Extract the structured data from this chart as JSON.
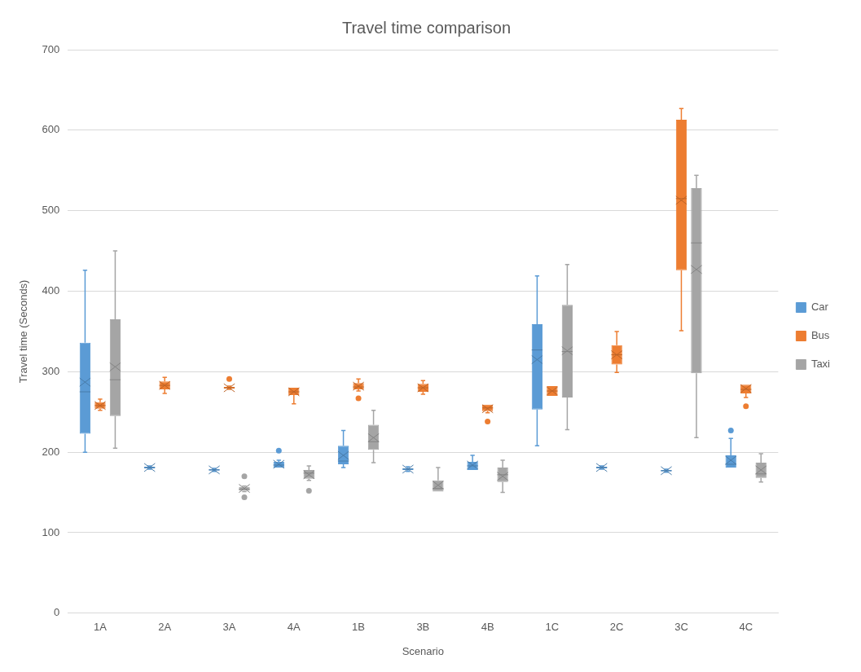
{
  "chart_data": {
    "type": "box",
    "title": "Travel time comparison",
    "xlabel": "Scenario",
    "ylabel": "Travel time (Seconds)",
    "categories": [
      "1A",
      "2A",
      "3A",
      "4A",
      "1B",
      "3B",
      "4B",
      "1C",
      "2C",
      "3C",
      "4C"
    ],
    "ylim": [
      0,
      700
    ],
    "yticks": [
      0,
      100,
      200,
      300,
      400,
      500,
      600,
      700
    ],
    "grid": "y",
    "legend": "right",
    "series": [
      {
        "name": "Car",
        "color": "#5b9bd5",
        "boxes": [
          {
            "low": 200,
            "q1": 223,
            "median": 275,
            "q3": 336,
            "high": 426,
            "mean": 287
          },
          {
            "low": 179,
            "q1": 180,
            "median": 181,
            "q3": 182,
            "high": 183,
            "mean": 181
          },
          {
            "low": 176,
            "q1": 177,
            "median": 178,
            "q3": 179,
            "high": 180,
            "mean": 178
          },
          {
            "low": 181,
            "q1": 181,
            "median": 184,
            "q3": 188,
            "high": 190,
            "mean": 185,
            "outliers": [
              202
            ]
          },
          {
            "low": 181,
            "q1": 185,
            "median": 189,
            "q3": 208,
            "high": 227,
            "mean": 196
          },
          {
            "low": 176,
            "q1": 178,
            "median": 179,
            "q3": 180,
            "high": 182,
            "mean": 179
          },
          {
            "low": 178,
            "q1": 178,
            "median": 183,
            "q3": 188,
            "high": 196,
            "mean": 184
          },
          {
            "low": 208,
            "q1": 253,
            "median": 327,
            "q3": 359,
            "high": 419,
            "mean": 315
          },
          {
            "low": 179,
            "q1": 180,
            "median": 181,
            "q3": 182,
            "high": 183,
            "mean": 181
          },
          {
            "low": 175,
            "q1": 176,
            "median": 177,
            "q3": 178,
            "high": 179,
            "mean": 177
          },
          {
            "low": 181,
            "q1": 181,
            "median": 185,
            "q3": 196,
            "high": 217,
            "mean": 190,
            "outliers": [
              227
            ]
          }
        ]
      },
      {
        "name": "Bus",
        "color": "#ed7d31",
        "boxes": [
          {
            "low": 252,
            "q1": 254,
            "median": 258,
            "q3": 262,
            "high": 266,
            "mean": 258
          },
          {
            "low": 273,
            "q1": 278,
            "median": 283,
            "q3": 288,
            "high": 293,
            "mean": 283
          },
          {
            "low": 278,
            "q1": 279,
            "median": 280,
            "q3": 281,
            "high": 282,
            "mean": 280,
            "outliers": [
              291
            ]
          },
          {
            "low": 260,
            "q1": 271,
            "median": 275,
            "q3": 280,
            "high": 280,
            "mean": 275
          },
          {
            "low": 276,
            "q1": 278,
            "median": 281,
            "q3": 286,
            "high": 291,
            "mean": 282,
            "outliers": [
              267
            ]
          },
          {
            "low": 272,
            "q1": 275,
            "median": 280,
            "q3": 285,
            "high": 289,
            "mean": 280
          },
          {
            "low": 249,
            "q1": 251,
            "median": 255,
            "q3": 259,
            "high": 259,
            "mean": 254,
            "outliers": [
              238
            ]
          },
          {
            "low": 270,
            "q1": 270,
            "median": 276,
            "q3": 282,
            "high": 282,
            "mean": 276
          },
          {
            "low": 299,
            "q1": 309,
            "median": 321,
            "q3": 333,
            "high": 350,
            "mean": 321
          },
          {
            "low": 351,
            "q1": 426,
            "median": 515,
            "q3": 613,
            "high": 627,
            "mean": 513
          },
          {
            "low": 268,
            "q1": 273,
            "median": 278,
            "q3": 284,
            "high": 284,
            "mean": 279,
            "outliers": [
              257
            ]
          }
        ]
      },
      {
        "name": "Taxi",
        "color": "#a5a5a5",
        "boxes": [
          {
            "low": 205,
            "q1": 245,
            "median": 290,
            "q3": 365,
            "high": 450,
            "mean": 306
          },
          null,
          {
            "low": 151,
            "q1": 152,
            "median": 154,
            "q3": 157,
            "high": 158,
            "mean": 155,
            "outliers": [
              144,
              170
            ]
          },
          {
            "low": 165,
            "q1": 167,
            "median": 174,
            "q3": 178,
            "high": 183,
            "mean": 172,
            "outliers": [
              152
            ]
          },
          {
            "low": 187,
            "q1": 203,
            "median": 213,
            "q3": 234,
            "high": 252,
            "mean": 218
          },
          {
            "low": 151,
            "q1": 151,
            "median": 155,
            "q3": 165,
            "high": 181,
            "mean": 159
          },
          {
            "low": 150,
            "q1": 163,
            "median": 172,
            "q3": 181,
            "high": 190,
            "mean": 170
          },
          {
            "low": 228,
            "q1": 268,
            "median": 325,
            "q3": 383,
            "high": 433,
            "mean": 326
          },
          null,
          {
            "low": 218,
            "q1": 298,
            "median": 460,
            "q3": 528,
            "high": 544,
            "mean": 427
          },
          {
            "low": 163,
            "q1": 168,
            "median": 173,
            "q3": 187,
            "high": 198,
            "mean": 178
          }
        ]
      }
    ]
  }
}
